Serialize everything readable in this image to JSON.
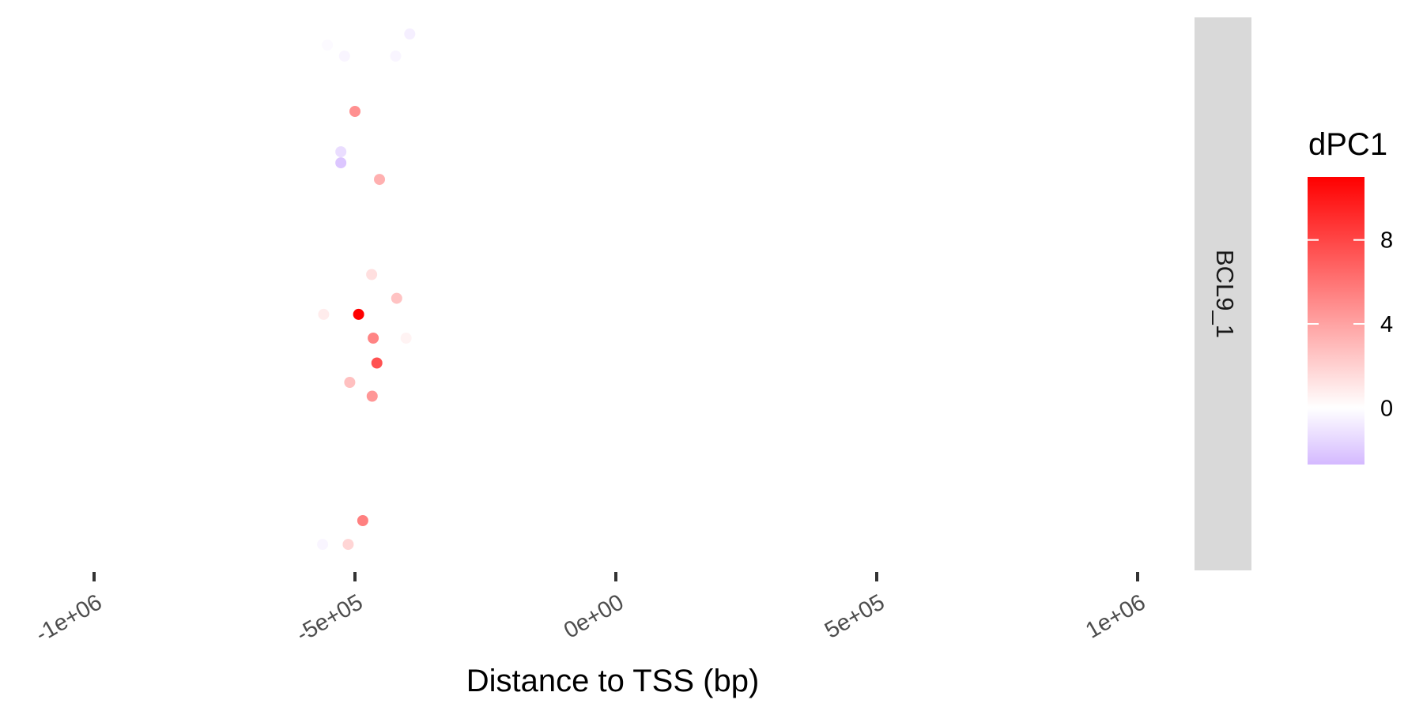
{
  "chart_data": {
    "type": "scatter",
    "xlabel": "Distance to TSS (bp)",
    "ylabel": "",
    "xlim": [
      -1100000,
      1100000
    ],
    "x_ticks": [
      -1000000,
      -500000,
      0,
      500000,
      1000000
    ],
    "x_tick_labels": [
      "-1e+06",
      "-5e+05",
      "0e+00",
      "5e+05",
      "1e+06"
    ],
    "y_axis_shown": false,
    "grid": false,
    "facet_label": "BCL9_1",
    "color_legend": {
      "title": "dPC1",
      "position": "right",
      "min": -2.7,
      "max": 11,
      "ticks": [
        0,
        4,
        8
      ],
      "tick_labels": [
        "0",
        "4",
        "8"
      ],
      "low_color": "#d4b9ff",
      "mid_color": "#ffffff",
      "high_color": "#ff0000"
    },
    "points": [
      {
        "x": -395000,
        "y": 0.97,
        "value": -0.6
      },
      {
        "x": -553000,
        "y": 0.95,
        "value": -0.2
      },
      {
        "x": -520000,
        "y": 0.93,
        "value": -0.4
      },
      {
        "x": -422000,
        "y": 0.93,
        "value": -0.4
      },
      {
        "x": -500000,
        "y": 0.83,
        "value": 4.8
      },
      {
        "x": -527000,
        "y": 0.757,
        "value": -1.3
      },
      {
        "x": -527000,
        "y": 0.737,
        "value": -2.2
      },
      {
        "x": -453000,
        "y": 0.707,
        "value": 3.4
      },
      {
        "x": -468000,
        "y": 0.535,
        "value": 1.4
      },
      {
        "x": -420000,
        "y": 0.492,
        "value": 2.6
      },
      {
        "x": -560000,
        "y": 0.463,
        "value": 0.8
      },
      {
        "x": -493000,
        "y": 0.463,
        "value": 11
      },
      {
        "x": -465000,
        "y": 0.42,
        "value": 5.3
      },
      {
        "x": -402000,
        "y": 0.42,
        "value": 0.5
      },
      {
        "x": -458000,
        "y": 0.375,
        "value": 7.5
      },
      {
        "x": -510000,
        "y": 0.34,
        "value": 2.7
      },
      {
        "x": -467000,
        "y": 0.315,
        "value": 4.5
      },
      {
        "x": -485000,
        "y": 0.09,
        "value": 5.5
      },
      {
        "x": -562000,
        "y": 0.047,
        "value": -0.4
      },
      {
        "x": -513000,
        "y": 0.047,
        "value": 1.8
      }
    ]
  }
}
